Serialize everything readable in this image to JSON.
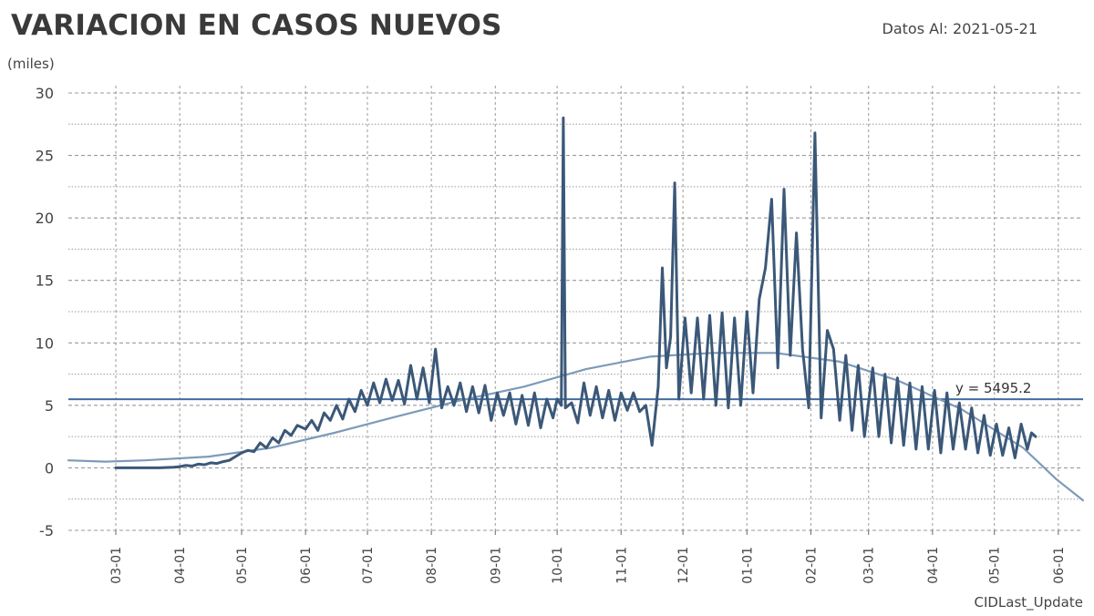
{
  "title": "VARIACION EN CASOS NUEVOS",
  "date_text": "Datos Al: 2021-05-21",
  "colors": {
    "series": "#3b5878",
    "trend": "#7d9ab9",
    "reference_line": "#3f6da2",
    "grid": "#9a9a9a"
  },
  "chart_data": {
    "type": "line",
    "unit_label": "(miles)",
    "xlabel": "CIDLast_Update",
    "ylabel": "",
    "xlim": [
      "2020-02-07",
      "2021-06-13"
    ],
    "ylim": [
      -5,
      30
    ],
    "y_ticks": [
      -5,
      0,
      5,
      10,
      15,
      20,
      25,
      30
    ],
    "x_ticks": [
      "03-01",
      "04-01",
      "05-01",
      "06-01",
      "07-01",
      "08-01",
      "09-01",
      "10-01",
      "11-01",
      "12-01",
      "01-01",
      "02-01",
      "03-01",
      "04-01",
      "05-01",
      "06-01"
    ],
    "x_tick_dates": [
      "2020-03-01",
      "2020-04-01",
      "2020-05-01",
      "2020-06-01",
      "2020-07-01",
      "2020-08-01",
      "2020-09-01",
      "2020-10-01",
      "2020-11-01",
      "2020-12-01",
      "2021-01-01",
      "2021-02-01",
      "2021-03-01",
      "2021-04-01",
      "2021-05-01",
      "2021-06-01"
    ],
    "grid": true,
    "reference_line": {
      "y": 5.4952,
      "label": "y = 5495.2"
    },
    "series": [
      {
        "points": [
          [
            "2020-03-01",
            0.0
          ],
          [
            "2020-03-08",
            0.0
          ],
          [
            "2020-03-15",
            0.0
          ],
          [
            "2020-03-22",
            0.0
          ],
          [
            "2020-03-29",
            0.05
          ],
          [
            "2020-04-01",
            0.1
          ],
          [
            "2020-04-04",
            0.2
          ],
          [
            "2020-04-07",
            0.15
          ],
          [
            "2020-04-10",
            0.3
          ],
          [
            "2020-04-13",
            0.25
          ],
          [
            "2020-04-16",
            0.4
          ],
          [
            "2020-04-19",
            0.35
          ],
          [
            "2020-04-22",
            0.5
          ],
          [
            "2020-04-25",
            0.6
          ],
          [
            "2020-04-28",
            0.9
          ],
          [
            "2020-05-01",
            1.2
          ],
          [
            "2020-05-04",
            1.4
          ],
          [
            "2020-05-07",
            1.3
          ],
          [
            "2020-05-10",
            2.0
          ],
          [
            "2020-05-13",
            1.6
          ],
          [
            "2020-05-16",
            2.4
          ],
          [
            "2020-05-19",
            2.0
          ],
          [
            "2020-05-22",
            3.0
          ],
          [
            "2020-05-25",
            2.6
          ],
          [
            "2020-05-28",
            3.4
          ],
          [
            "2020-06-01",
            3.1
          ],
          [
            "2020-06-04",
            3.8
          ],
          [
            "2020-06-07",
            3.0
          ],
          [
            "2020-06-10",
            4.4
          ],
          [
            "2020-06-13",
            3.8
          ],
          [
            "2020-06-16",
            5.0
          ],
          [
            "2020-06-19",
            3.9
          ],
          [
            "2020-06-22",
            5.5
          ],
          [
            "2020-06-25",
            4.5
          ],
          [
            "2020-06-28",
            6.2
          ],
          [
            "2020-07-01",
            5.0
          ],
          [
            "2020-07-04",
            6.8
          ],
          [
            "2020-07-07",
            5.2
          ],
          [
            "2020-07-10",
            7.1
          ],
          [
            "2020-07-13",
            5.4
          ],
          [
            "2020-07-16",
            7.0
          ],
          [
            "2020-07-19",
            5.1
          ],
          [
            "2020-07-22",
            8.2
          ],
          [
            "2020-07-25",
            5.5
          ],
          [
            "2020-07-28",
            8.0
          ],
          [
            "2020-07-31",
            5.2
          ],
          [
            "2020-08-03",
            9.5
          ],
          [
            "2020-08-06",
            4.8
          ],
          [
            "2020-08-09",
            6.5
          ],
          [
            "2020-08-12",
            5.0
          ],
          [
            "2020-08-15",
            6.8
          ],
          [
            "2020-08-18",
            4.5
          ],
          [
            "2020-08-21",
            6.5
          ],
          [
            "2020-08-24",
            4.4
          ],
          [
            "2020-08-27",
            6.6
          ],
          [
            "2020-08-30",
            3.8
          ],
          [
            "2020-09-02",
            6.0
          ],
          [
            "2020-09-05",
            4.2
          ],
          [
            "2020-09-08",
            6.0
          ],
          [
            "2020-09-11",
            3.5
          ],
          [
            "2020-09-14",
            5.8
          ],
          [
            "2020-09-17",
            3.4
          ],
          [
            "2020-09-20",
            6.0
          ],
          [
            "2020-09-23",
            3.2
          ],
          [
            "2020-09-26",
            5.5
          ],
          [
            "2020-09-29",
            4.0
          ],
          [
            "2020-10-01",
            5.5
          ],
          [
            "2020-10-03",
            5.0
          ],
          [
            "2020-10-04",
            28.0
          ],
          [
            "2020-10-05",
            4.8
          ],
          [
            "2020-10-08",
            5.2
          ],
          [
            "2020-10-11",
            3.6
          ],
          [
            "2020-10-14",
            6.8
          ],
          [
            "2020-10-17",
            4.2
          ],
          [
            "2020-10-20",
            6.5
          ],
          [
            "2020-10-23",
            4.0
          ],
          [
            "2020-10-26",
            6.2
          ],
          [
            "2020-10-29",
            3.8
          ],
          [
            "2020-11-01",
            6.0
          ],
          [
            "2020-11-04",
            4.6
          ],
          [
            "2020-11-07",
            6.0
          ],
          [
            "2020-11-10",
            4.5
          ],
          [
            "2020-11-13",
            5.0
          ],
          [
            "2020-11-16",
            1.8
          ],
          [
            "2020-11-19",
            6.5
          ],
          [
            "2020-11-21",
            16.0
          ],
          [
            "2020-11-23",
            8.0
          ],
          [
            "2020-11-25",
            10.5
          ],
          [
            "2020-11-27",
            22.8
          ],
          [
            "2020-11-29",
            5.5
          ],
          [
            "2020-12-02",
            12.0
          ],
          [
            "2020-12-05",
            6.0
          ],
          [
            "2020-12-08",
            12.0
          ],
          [
            "2020-12-11",
            5.5
          ],
          [
            "2020-12-14",
            12.2
          ],
          [
            "2020-12-17",
            5.0
          ],
          [
            "2020-12-20",
            12.4
          ],
          [
            "2020-12-23",
            4.8
          ],
          [
            "2020-12-26",
            12.0
          ],
          [
            "2020-12-29",
            5.0
          ],
          [
            "2021-01-01",
            12.5
          ],
          [
            "2021-01-04",
            6.0
          ],
          [
            "2021-01-07",
            13.5
          ],
          [
            "2021-01-10",
            16.0
          ],
          [
            "2021-01-13",
            21.5
          ],
          [
            "2021-01-16",
            8.0
          ],
          [
            "2021-01-19",
            22.3
          ],
          [
            "2021-01-22",
            9.0
          ],
          [
            "2021-01-25",
            18.8
          ],
          [
            "2021-01-28",
            9.5
          ],
          [
            "2021-01-31",
            4.8
          ],
          [
            "2021-02-03",
            26.8
          ],
          [
            "2021-02-06",
            4.0
          ],
          [
            "2021-02-09",
            11.0
          ],
          [
            "2021-02-12",
            9.5
          ],
          [
            "2021-02-15",
            3.8
          ],
          [
            "2021-02-18",
            9.0
          ],
          [
            "2021-02-21",
            3.0
          ],
          [
            "2021-02-24",
            8.2
          ],
          [
            "2021-02-27",
            2.5
          ],
          [
            "2021-03-03",
            8.0
          ],
          [
            "2021-03-06",
            2.5
          ],
          [
            "2021-03-09",
            7.5
          ],
          [
            "2021-03-12",
            2.0
          ],
          [
            "2021-03-15",
            7.2
          ],
          [
            "2021-03-18",
            1.8
          ],
          [
            "2021-03-21",
            6.8
          ],
          [
            "2021-03-24",
            1.5
          ],
          [
            "2021-03-27",
            6.5
          ],
          [
            "2021-03-30",
            1.5
          ],
          [
            "2021-04-02",
            6.2
          ],
          [
            "2021-04-05",
            1.2
          ],
          [
            "2021-04-08",
            6.0
          ],
          [
            "2021-04-11",
            1.5
          ],
          [
            "2021-04-14",
            5.2
          ],
          [
            "2021-04-17",
            1.5
          ],
          [
            "2021-04-20",
            4.8
          ],
          [
            "2021-04-23",
            1.2
          ],
          [
            "2021-04-26",
            4.2
          ],
          [
            "2021-04-29",
            1.0
          ],
          [
            "2021-05-02",
            3.5
          ],
          [
            "2021-05-05",
            1.0
          ],
          [
            "2021-05-08",
            3.2
          ],
          [
            "2021-05-11",
            0.8
          ],
          [
            "2021-05-14",
            3.5
          ],
          [
            "2021-05-17",
            1.5
          ],
          [
            "2021-05-19",
            2.8
          ],
          [
            "2021-05-21",
            2.5
          ]
        ]
      },
      {
        "points": [
          [
            "2020-02-07",
            0.6
          ],
          [
            "2020-02-25",
            0.5
          ],
          [
            "2020-03-15",
            0.6
          ],
          [
            "2020-04-15",
            0.9
          ],
          [
            "2020-05-15",
            1.6
          ],
          [
            "2020-06-15",
            2.8
          ],
          [
            "2020-07-15",
            4.1
          ],
          [
            "2020-08-15",
            5.4
          ],
          [
            "2020-09-15",
            6.5
          ],
          [
            "2020-10-15",
            7.9
          ],
          [
            "2020-11-15",
            8.9
          ],
          [
            "2020-12-15",
            9.2
          ],
          [
            "2021-01-15",
            9.2
          ],
          [
            "2021-02-15",
            8.5
          ],
          [
            "2021-03-15",
            7.0
          ],
          [
            "2021-04-15",
            4.7
          ],
          [
            "2021-05-15",
            1.6
          ],
          [
            "2021-05-31",
            -0.9
          ],
          [
            "2021-06-13",
            -2.6
          ]
        ]
      }
    ]
  }
}
